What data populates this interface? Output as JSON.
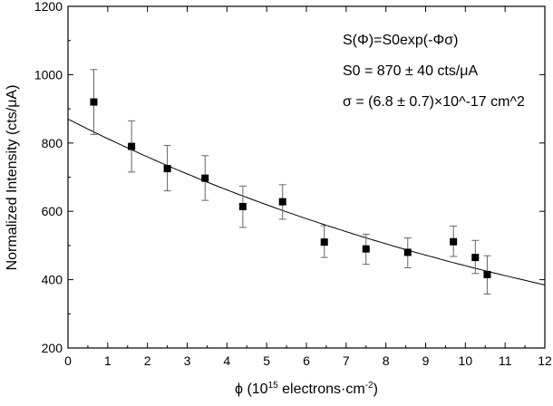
{
  "chart_data": {
    "type": "scatter",
    "xlabel": "ϕ (10^15 electrons·cm^-2)",
    "xlabel_parts": {
      "pre": "ϕ (10",
      "sup1": "15",
      "mid": " electrons·cm",
      "sup2": "-2",
      "post": ")"
    },
    "ylabel": "Normalized Intensity (cts/μA)",
    "xlim": [
      0,
      12
    ],
    "ylim": [
      200,
      1200
    ],
    "xticks": [
      0,
      1,
      2,
      3,
      4,
      5,
      6,
      7,
      8,
      9,
      10,
      11,
      12
    ],
    "yticks": [
      200,
      400,
      600,
      800,
      1000,
      1200
    ],
    "grid": false,
    "points": [
      {
        "x": 0.65,
        "y": 920,
        "err_low": 825,
        "err_high": 1015
      },
      {
        "x": 1.6,
        "y": 790,
        "err_low": 715,
        "err_high": 865
      },
      {
        "x": 2.5,
        "y": 725,
        "err_low": 660,
        "err_high": 793
      },
      {
        "x": 3.45,
        "y": 697,
        "err_low": 632,
        "err_high": 763
      },
      {
        "x": 4.4,
        "y": 614,
        "err_low": 553,
        "err_high": 674
      },
      {
        "x": 5.4,
        "y": 628,
        "err_low": 577,
        "err_high": 678
      },
      {
        "x": 6.45,
        "y": 510,
        "err_low": 465,
        "err_high": 558
      },
      {
        "x": 7.5,
        "y": 490,
        "err_low": 445,
        "err_high": 533
      },
      {
        "x": 8.55,
        "y": 480,
        "err_low": 435,
        "err_high": 522
      },
      {
        "x": 9.7,
        "y": 511,
        "err_low": 468,
        "err_high": 557
      },
      {
        "x": 10.25,
        "y": 465,
        "err_low": 418,
        "err_high": 515
      },
      {
        "x": 10.55,
        "y": 415,
        "err_low": 358,
        "err_high": 470
      }
    ],
    "fit": {
      "model": "S0*exp(-phi*sigma)",
      "S0": 870,
      "sigma_per_1e15": 0.068
    },
    "annotations": {
      "line1": "S(Φ)=S0exp(-Φσ)",
      "line2": "S0 = 870 ± 40 cts/μA",
      "line3": "σ = (6.8 ± 0.7)×10^-17 cm^2"
    },
    "colors": {
      "marker": "#000000",
      "errorbar": "#666666",
      "fit": "#000000"
    }
  }
}
